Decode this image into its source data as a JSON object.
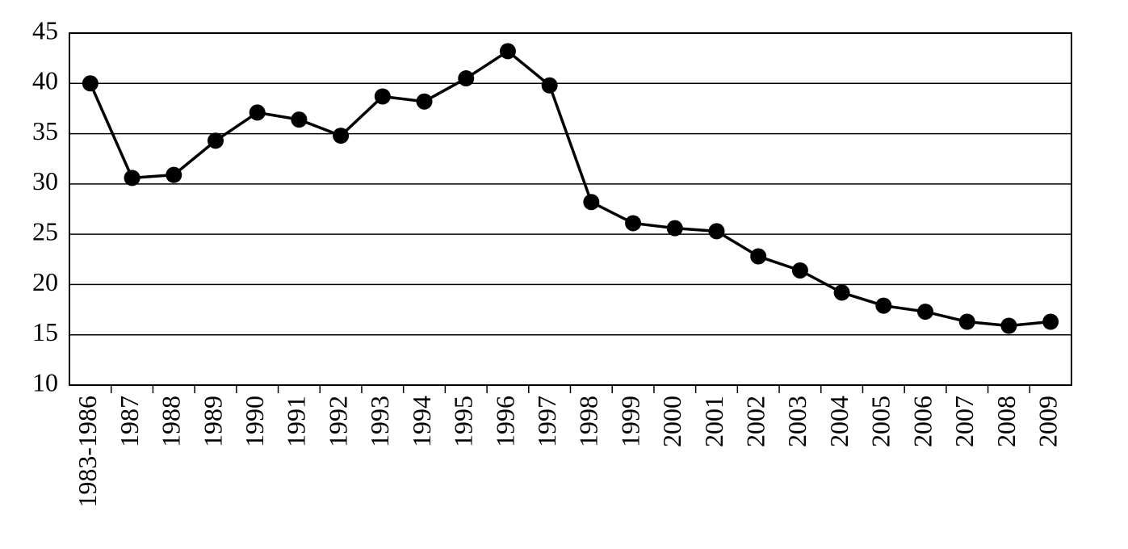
{
  "chart_data": {
    "type": "line",
    "categories": [
      "1983-1986",
      "1987",
      "1988",
      "1989",
      "1990",
      "1991",
      "1992",
      "1993",
      "1994",
      "1995",
      "1996",
      "1997",
      "1998",
      "1999",
      "2000",
      "2001",
      "2002",
      "2003",
      "2004",
      "2005",
      "2006",
      "2007",
      "2008",
      "2009"
    ],
    "values": [
      40,
      30.6,
      30.9,
      34.3,
      37.1,
      36.4,
      34.8,
      38.7,
      38.2,
      40.5,
      43.2,
      39.8,
      28.2,
      26.1,
      25.6,
      25.3,
      22.8,
      21.4,
      19.2,
      17.9,
      17.3,
      16.3,
      15.9,
      16.3
    ],
    "color": "#000000",
    "ylim": [
      10,
      45
    ],
    "yticks": [
      10,
      15,
      20,
      25,
      30,
      35,
      40,
      45
    ],
    "grid": true
  }
}
